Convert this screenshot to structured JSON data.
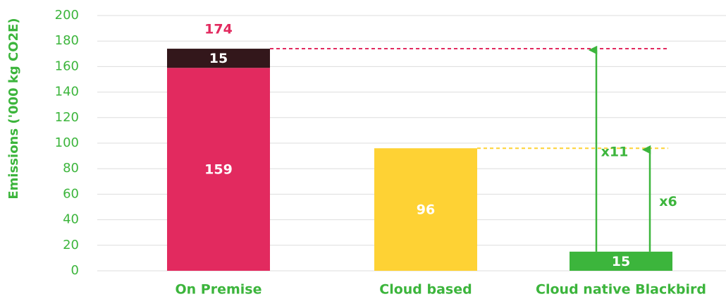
{
  "chart_data": {
    "type": "stacked_bar",
    "y_label": "Emissions ('000 kg CO2E)",
    "categories": [
      "On Premise",
      "Cloud based",
      "Cloud native Blackbird"
    ],
    "series": [
      {
        "colors": [
          "#e22a5f",
          "#fed234",
          "#3cb53c"
        ],
        "values": [
          159,
          96,
          15
        ]
      },
      {
        "color": "#33171b",
        "values": [
          15,
          null,
          null
        ]
      }
    ],
    "total_labels": [
      174,
      null,
      null
    ],
    "annotations": [
      "x11",
      "x6"
    ],
    "ylim": [
      0,
      200
    ],
    "yticks": [
      0,
      20,
      40,
      60,
      80,
      100,
      120,
      140,
      160,
      180,
      200
    ],
    "grid": true
  }
}
